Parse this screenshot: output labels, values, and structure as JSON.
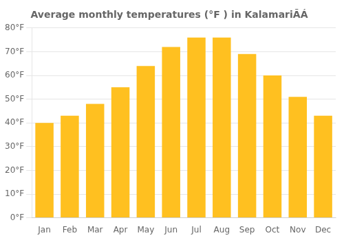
{
  "chart_data": {
    "type": "bar",
    "title": "Average monthly temperatures (°F ) in KalamariÃÁ",
    "categories": [
      "Jan",
      "Feb",
      "Mar",
      "Apr",
      "May",
      "Jun",
      "Jul",
      "Aug",
      "Sep",
      "Oct",
      "Nov",
      "Dec"
    ],
    "values": [
      40,
      43,
      48,
      55,
      64,
      72,
      76,
      76,
      69,
      60,
      51,
      43
    ],
    "color": "#FFC020",
    "ylim": [
      0,
      80
    ],
    "yticks": [
      {
        "value": 0,
        "label": "0°F"
      },
      {
        "value": 10,
        "label": "10°F"
      },
      {
        "value": 20,
        "label": "20°F"
      },
      {
        "value": 30,
        "label": "30°F"
      },
      {
        "value": 40,
        "label": "40°F"
      },
      {
        "value": 50,
        "label": "50°F"
      },
      {
        "value": 60,
        "label": "60°F"
      },
      {
        "value": 70,
        "label": "70°F"
      },
      {
        "value": 80,
        "label": "80°F"
      }
    ],
    "grid": true
  }
}
